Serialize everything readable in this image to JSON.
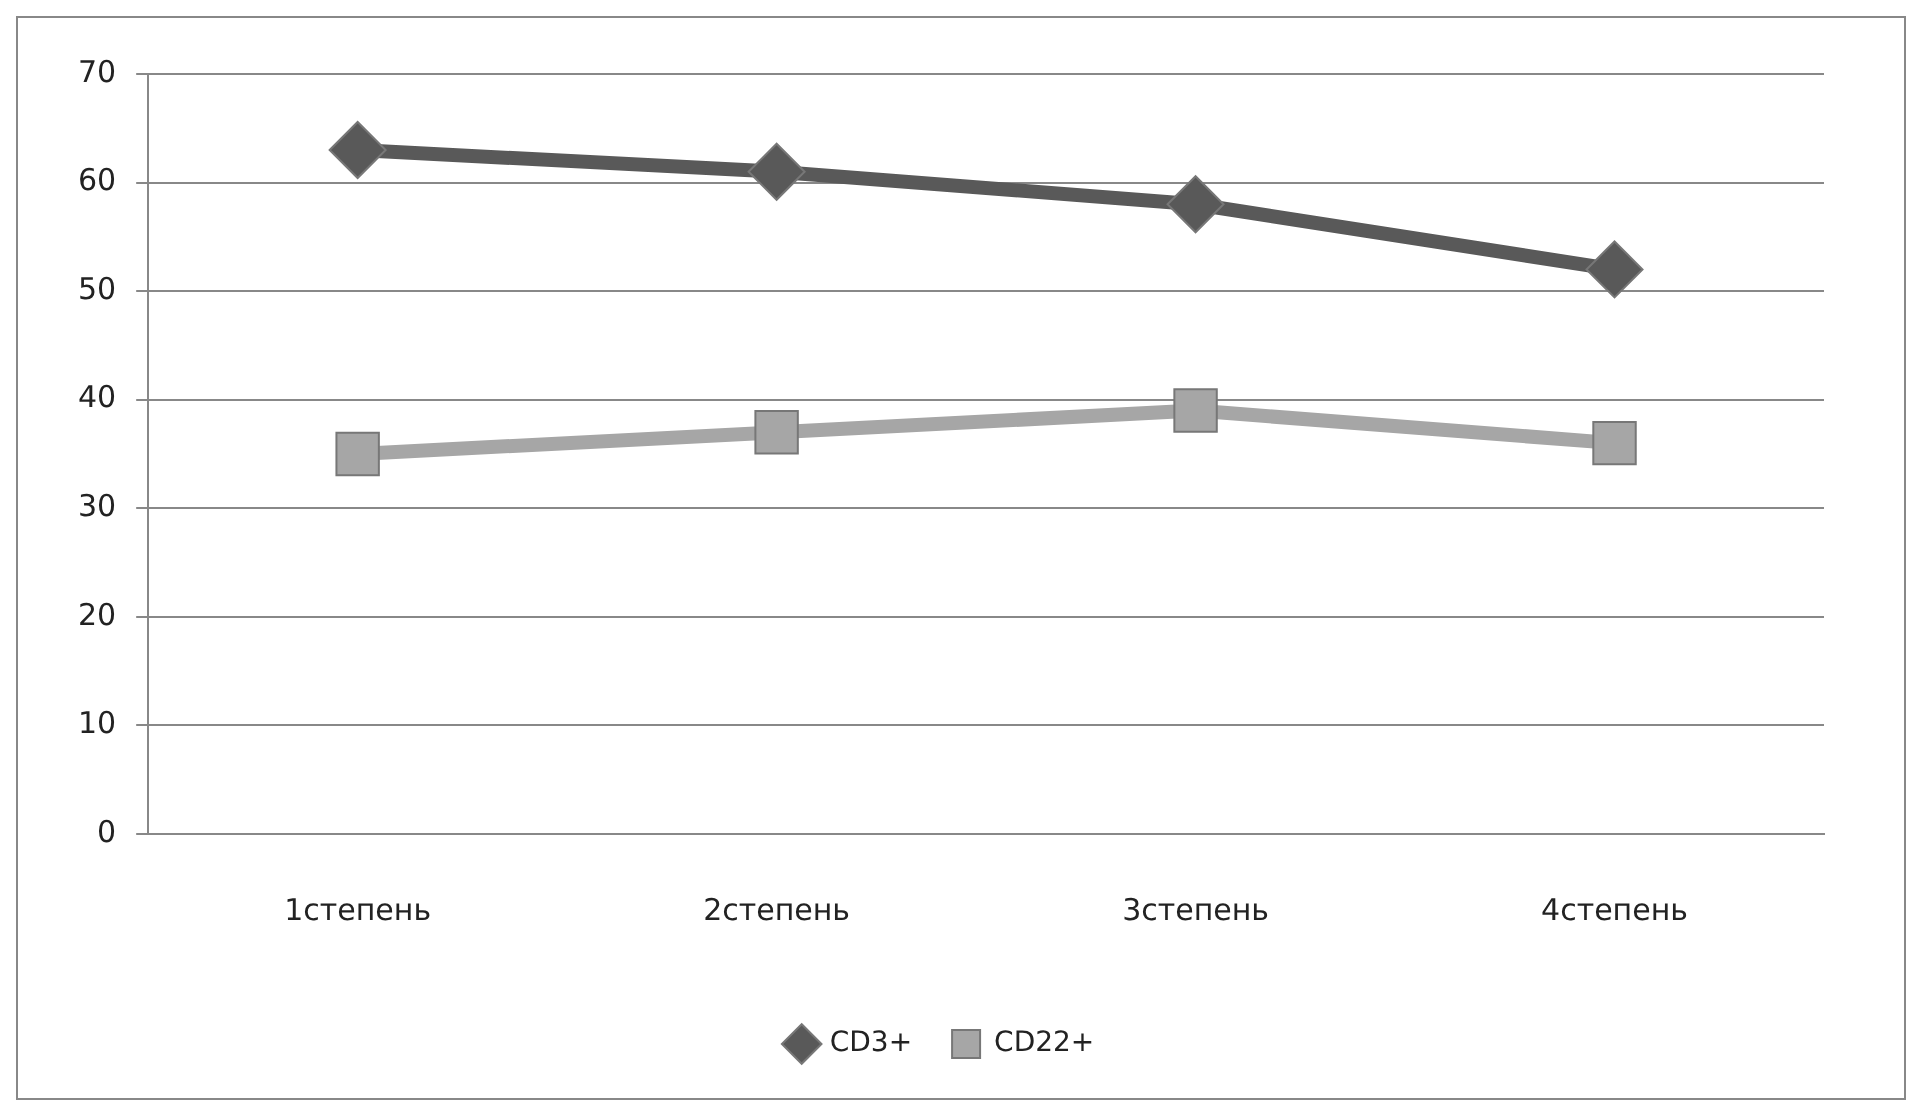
{
  "chart_data": {
    "type": "line",
    "categories": [
      "1степень",
      "2степень",
      "3степень",
      "4степень"
    ],
    "series": [
      {
        "name": "CD3+",
        "color": "#595959",
        "marker": "diamond",
        "values": [
          63,
          61,
          58,
          52
        ]
      },
      {
        "name": "CD22+",
        "color": "#a6a6a6",
        "marker": "square",
        "values": [
          35,
          37,
          39,
          36
        ]
      }
    ],
    "ylim": [
      0,
      70
    ],
    "yticks": [
      0,
      10,
      20,
      30,
      40,
      50,
      60,
      70
    ],
    "grid": "y",
    "legend": "bottom",
    "line_style": "solid"
  }
}
